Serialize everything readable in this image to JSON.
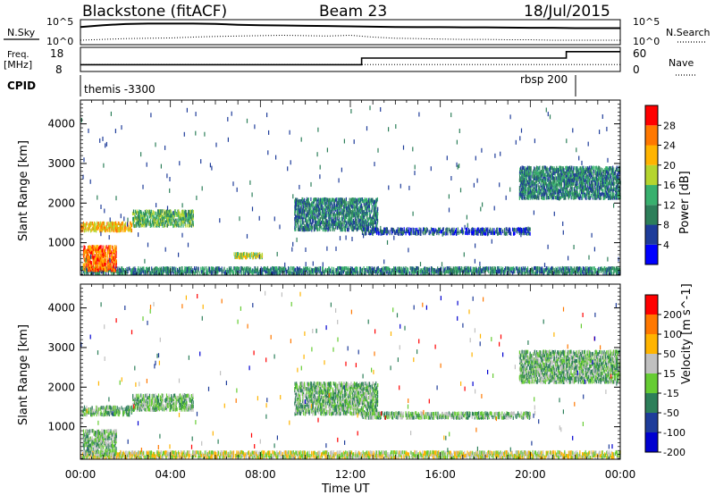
{
  "header": {
    "station": "Blackstone (fitACF)",
    "beam": "Beam 23",
    "date": "18/Jul/2015"
  },
  "chart_data": [
    {
      "type": "line",
      "panel": "noise",
      "left_label": "N.Sky",
      "right_label": "N.Search",
      "left_ticks": [
        "10^5",
        "10^0"
      ],
      "right_ticks": [
        "10^5",
        "10^0"
      ],
      "series": [
        {
          "name": "N.Sky",
          "style": "solid",
          "x": [
            0,
            1,
            2,
            3,
            4,
            5,
            6,
            7,
            8,
            9,
            10,
            11,
            12,
            13,
            14,
            15,
            16,
            17,
            18,
            19,
            20,
            21,
            22,
            23,
            24
          ],
          "values": [
            10000,
            30000,
            60000,
            80000,
            80000,
            80000,
            70000,
            40000,
            30000,
            25000,
            20000,
            18000,
            15000,
            12000,
            10000,
            9000,
            9000,
            8000,
            8000,
            7000,
            6000,
            6000,
            5000,
            5000,
            5000
          ]
        },
        {
          "name": "N.Search",
          "style": "dotted",
          "x": [
            0,
            1,
            2,
            3,
            4,
            5,
            6,
            7,
            8,
            9,
            10,
            11,
            12,
            13,
            14,
            15,
            16,
            17,
            18,
            19,
            20,
            21,
            22,
            23,
            24
          ],
          "values": [
            3,
            5,
            8,
            10,
            12,
            20,
            30,
            40,
            50,
            60,
            50,
            40,
            60,
            20,
            10,
            8,
            6,
            5,
            5,
            4,
            4,
            3,
            3,
            3,
            3
          ]
        }
      ]
    },
    {
      "type": "line",
      "panel": "frequency",
      "left_label": "Freq.",
      "left_unit": "[MHz]",
      "right_label": "Nave",
      "left_ticks": [
        18,
        8
      ],
      "right_ticks": [
        60,
        0
      ],
      "series": [
        {
          "name": "Freq.",
          "style": "solid",
          "x": [
            0,
            12.5,
            12.5,
            21.6,
            21.6,
            24
          ],
          "values": [
            10.3,
            10.3,
            14.0,
            14.0,
            17.6,
            17.6
          ]
        },
        {
          "name": "Nave",
          "style": "dotted",
          "x": [
            0,
            24
          ],
          "values": [
            14,
            14
          ]
        }
      ]
    },
    {
      "type": "table",
      "panel": "cpid",
      "label": "CPID",
      "segments": [
        {
          "name": "themis -3300",
          "start": 0,
          "end": 21.6
        },
        {
          "name": "rbsp 200",
          "start": 21.6,
          "end": 24
        }
      ]
    },
    {
      "type": "heatmap",
      "panel": "power",
      "ylabel": "Slant Range [km]",
      "xlabel": "",
      "x_ticks": [
        "00:00",
        "04:00",
        "08:00",
        "12:00",
        "16:00",
        "20:00",
        "00:00"
      ],
      "x_range_hours": [
        0,
        24
      ],
      "y_ticks": [
        1000,
        2000,
        3000,
        4000
      ],
      "ylim": [
        180,
        4600
      ],
      "colorbar": {
        "label": "Power [dB]",
        "ticks": [
          4,
          8,
          12,
          16,
          20,
          24,
          28
        ],
        "range": [
          0,
          32
        ],
        "colors": [
          "#0000ff",
          "#1e3c9a",
          "#2d7f5a",
          "#38b06e",
          "#b5d52e",
          "#ffb400",
          "#ff7800",
          "#ff0000"
        ]
      },
      "features": [
        {
          "name": "near-range band",
          "t_start": 0,
          "t_end": 24,
          "r_start": 200,
          "r_end": 360,
          "level": 2
        },
        {
          "name": "early morning strong echoes",
          "t_start": 0.1,
          "t_end": 1.6,
          "r_start": 280,
          "r_end": 900,
          "level": 6
        },
        {
          "name": "morning band",
          "t_start": 0,
          "t_end": 2.3,
          "r_start": 1280,
          "r_end": 1500,
          "level": 5
        },
        {
          "name": "rising band",
          "t_start": 2.3,
          "t_end": 5.0,
          "r_start": 1400,
          "r_end": 1800,
          "level": 3
        },
        {
          "name": "patch 07:00",
          "t_start": 6.8,
          "t_end": 8.1,
          "r_start": 600,
          "r_end": 720,
          "level": 4
        },
        {
          "name": "descending band",
          "t_start": 9.5,
          "t_end": 13.2,
          "r_start": 1300,
          "r_end": 2100,
          "level": 2
        },
        {
          "name": "range 1300 band",
          "t_start": 12.5,
          "t_end": 20.0,
          "r_start": 1200,
          "r_end": 1350,
          "level": 1
        },
        {
          "name": "evening far echoes",
          "t_start": 19.5,
          "t_end": 24,
          "r_start": 2100,
          "r_end": 2900,
          "level": 2
        }
      ]
    },
    {
      "type": "heatmap",
      "panel": "velocity",
      "ylabel": "Slant Range [km]",
      "xlabel": "Time UT",
      "x_ticks": [
        "00:00",
        "04:00",
        "08:00",
        "12:00",
        "16:00",
        "20:00",
        "00:00"
      ],
      "x_range_hours": [
        0,
        24
      ],
      "y_ticks": [
        1000,
        2000,
        3000,
        4000
      ],
      "ylim": [
        180,
        4600
      ],
      "colorbar": {
        "label": "Velocity [m s^-1]",
        "ticks": [
          200,
          100,
          50,
          15,
          -15,
          -50,
          -100,
          -200
        ],
        "colors": [
          "#0000d0",
          "#1e3c9a",
          "#2d7f5a",
          "#66cc33",
          "#c0c0c0",
          "#ffb400",
          "#ff7800",
          "#ff0000"
        ]
      },
      "features": [
        {
          "name": "near-range band",
          "t_start": 0,
          "t_end": 24,
          "r_start": 200,
          "r_end": 360,
          "level": 3
        },
        {
          "name": "early morning echoes",
          "t_start": 0.1,
          "t_end": 1.6,
          "r_start": 280,
          "r_end": 900,
          "level": 4
        },
        {
          "name": "morning band",
          "t_start": 0,
          "t_end": 2.3,
          "r_start": 1280,
          "r_end": 1500,
          "level": 4
        },
        {
          "name": "rising band",
          "t_start": 2.3,
          "t_end": 5.0,
          "r_start": 1400,
          "r_end": 1800,
          "level": 4
        },
        {
          "name": "descending band",
          "t_start": 9.5,
          "t_end": 13.2,
          "r_start": 1300,
          "r_end": 2100,
          "level": 4
        },
        {
          "name": "range 1300 band",
          "t_start": 12.5,
          "t_end": 20.0,
          "r_start": 1200,
          "r_end": 1350,
          "level": 4
        },
        {
          "name": "evening far echoes",
          "t_start": 19.5,
          "t_end": 24,
          "r_start": 2100,
          "r_end": 2900,
          "level": 4
        }
      ]
    }
  ]
}
